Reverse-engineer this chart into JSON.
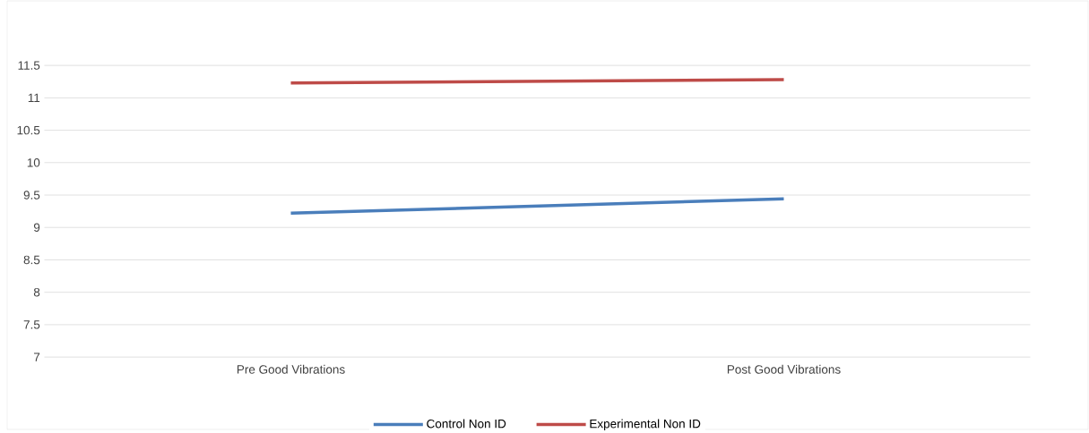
{
  "chart_data": {
    "type": "line",
    "categories": [
      "Pre Good Vibrations",
      "Post Good Vibrations"
    ],
    "series": [
      {
        "name": "Control Non ID",
        "color": "#4a7ebb",
        "values": [
          9.22,
          9.44
        ]
      },
      {
        "name": "Experimental Non ID",
        "color": "#be4b48",
        "values": [
          11.23,
          11.28
        ]
      }
    ],
    "ylim": [
      7,
      11.5
    ],
    "yticks": [
      7,
      7.5,
      8,
      8.5,
      9,
      9.5,
      10,
      10.5,
      11,
      11.5
    ],
    "grid": "y",
    "legend": "bottom",
    "marker": "none",
    "line_style": "solid"
  }
}
